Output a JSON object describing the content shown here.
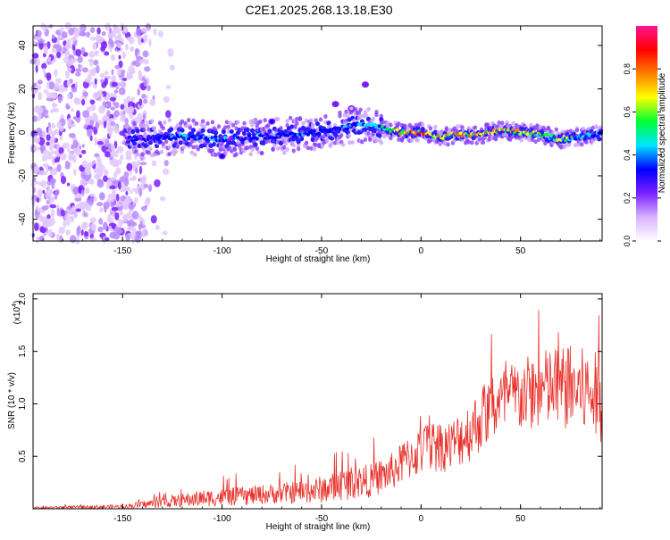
{
  "chart_data": {
    "title": "C2E1.2025.268.13.18.E30",
    "spectrogram": {
      "type": "heatmap",
      "xlabel": "Height of straight line (km)",
      "ylabel": "Frequency (Hz)",
      "xlim": [
        -195,
        91
      ],
      "ylim": [
        -50,
        49
      ],
      "xticks": [
        -150,
        -100,
        -50,
        0,
        50
      ],
      "yticks": [
        -40,
        -20,
        0,
        20,
        40
      ],
      "colorbar": {
        "label": "Normalized spectral amplitude",
        "range": [
          0,
          1
        ],
        "ticks": [
          0.0,
          0.2,
          0.4,
          0.6,
          0.8
        ],
        "tick_labels": [
          "0.0",
          "0.2",
          "0.4",
          "0.6",
          "0.8"
        ],
        "colors": [
          "#ffffff",
          "#d9b3ff",
          "#7a1fff",
          "#0000ff",
          "#00e5ff",
          "#00ff33",
          "#ffff00",
          "#ff7f00",
          "#ff0000",
          "#ff1493"
        ]
      },
      "ridge": {
        "description_points_x": [
          -145,
          -120,
          -100,
          -80,
          -60,
          -45,
          -35,
          -25,
          -20,
          -10,
          0,
          10,
          20,
          30,
          40,
          50,
          60,
          70,
          80,
          91
        ],
        "center_freq_hz": [
          -3,
          -2,
          -3,
          -2,
          -1,
          1,
          3,
          4,
          2,
          0,
          0,
          -2,
          -1,
          -1,
          1,
          0,
          -1,
          -3,
          -2,
          -1
        ],
        "peak_amplitude": [
          0.4,
          0.45,
          0.45,
          0.45,
          0.45,
          0.45,
          0.5,
          0.55,
          0.6,
          0.85,
          0.9,
          0.85,
          0.85,
          0.8,
          0.85,
          0.8,
          0.75,
          0.7,
          0.55,
          0.45
        ]
      },
      "noise_region_x": [
        -195,
        -125
      ],
      "blob_points": [
        {
          "x": -28,
          "y": 22,
          "a": 0.3
        },
        {
          "x": -43,
          "y": 13,
          "a": 0.25
        },
        {
          "x": -35,
          "y": 11,
          "a": 0.2
        },
        {
          "x": -75,
          "y": 5,
          "a": 0.35
        },
        {
          "x": -100,
          "y": -11,
          "a": 0.4
        }
      ]
    },
    "snr": {
      "type": "line",
      "xlabel": "Height of straight line (km)",
      "ylabel": "SNR (10 * v/v)",
      "scale_label": "(x10",
      "scale_exponent": "4",
      "multiplier_note": "values in units of 10^4",
      "color": "#e8302a",
      "xlim": [
        -195,
        91
      ],
      "ylim": [
        0,
        2.05
      ],
      "xticks": [
        -150,
        -100,
        -50,
        0,
        50
      ],
      "yticks": [
        0.5,
        1.0,
        1.5,
        2.0
      ],
      "ytick_labels": [
        "0.5",
        "1.0",
        "1.5",
        "2.0"
      ],
      "envelope_x": [
        -195,
        -150,
        -130,
        -110,
        -90,
        -70,
        -55,
        -45,
        -35,
        -25,
        -15,
        -5,
        5,
        15,
        25,
        35,
        45,
        55,
        65,
        75,
        85,
        91
      ],
      "envelope_mean": [
        0.01,
        0.02,
        0.06,
        0.1,
        0.12,
        0.15,
        0.17,
        0.2,
        0.25,
        0.27,
        0.35,
        0.5,
        0.6,
        0.6,
        0.75,
        0.95,
        1.05,
        1.1,
        1.15,
        1.15,
        1.1,
        1.05
      ],
      "envelope_spread": [
        0.01,
        0.02,
        0.05,
        0.08,
        0.09,
        0.1,
        0.12,
        0.14,
        0.16,
        0.16,
        0.18,
        0.22,
        0.25,
        0.25,
        0.3,
        0.32,
        0.35,
        0.37,
        0.4,
        0.42,
        0.42,
        0.42
      ]
    }
  }
}
